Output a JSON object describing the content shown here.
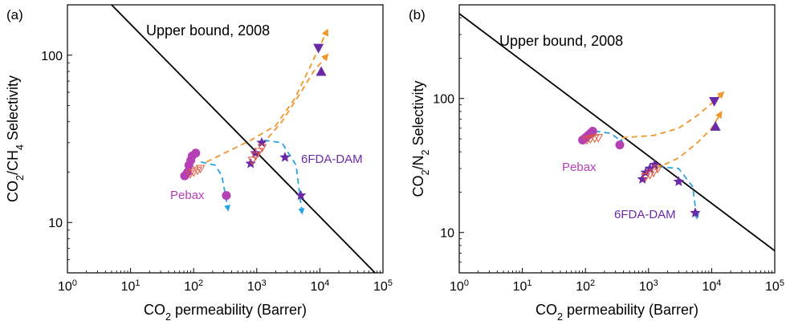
{
  "colors": {
    "pebax": "#b53fb5",
    "dam": "#6a2aa8",
    "trend_blue": "#29a3e0",
    "trend_orange": "#f0962a",
    "hollow": "#e0553a",
    "bound": "#000000"
  },
  "chart_data": [
    {
      "type": "scatter",
      "panel_label": "(a)",
      "xlabel": "CO2 permeability (Barrer)",
      "ylabel": "CO2/CH4 Selectivity",
      "x_scale": "log",
      "y_scale": "log",
      "xlim": [
        1,
        100000
      ],
      "ylim": [
        5,
        200
      ],
      "x_ticks": [
        "10^0",
        "10^1",
        "10^2",
        "10^3",
        "10^4",
        "10^5"
      ],
      "y_ticks": [
        "10",
        "100"
      ],
      "annotations": {
        "bound": "Upper bound, 2008",
        "pebax": "Pebax",
        "dam": "6FDA-DAM"
      },
      "upper_bound": [
        [
          5,
          200
        ],
        [
          75000,
          5
        ]
      ],
      "series": [
        {
          "name": "Pebax",
          "marker": "circle",
          "points": [
            [
              72,
              19
            ],
            [
              80,
              20
            ],
            [
              84,
              22
            ],
            [
              90,
              23.5
            ],
            [
              95,
              25
            ],
            [
              108,
              26
            ],
            [
              330,
              14.5
            ]
          ]
        },
        {
          "marker": "hollow-triangle-down",
          "points": [
            [
              88,
              19.5
            ],
            [
              100,
              20
            ],
            [
              115,
              20.5
            ],
            [
              128,
              21
            ]
          ]
        },
        {
          "name": "6FDA-DAM",
          "marker": "star",
          "points": [
            [
              800,
              22.5
            ],
            [
              950,
              26
            ],
            [
              1200,
              30
            ],
            [
              2800,
              24.5
            ],
            [
              5000,
              14.5
            ]
          ]
        },
        {
          "marker": "hollow-triangle-down",
          "points": [
            [
              850,
              23.5
            ],
            [
              960,
              25
            ],
            [
              1080,
              26.5
            ],
            [
              1220,
              28
            ]
          ]
        },
        {
          "marker": "triangle-down",
          "points": [
            [
              9500,
              110
            ]
          ]
        },
        {
          "marker": "triangle-up",
          "points": [
            [
              10500,
              80
            ]
          ]
        }
      ],
      "trends": [
        {
          "color": "blue",
          "points": [
            [
              130,
              23
            ],
            [
              220,
              22
            ],
            [
              280,
              19
            ],
            [
              350,
              12
            ]
          ]
        },
        {
          "color": "blue",
          "points": [
            [
              1300,
              31
            ],
            [
              2500,
              30
            ],
            [
              4200,
              22
            ],
            [
              5200,
              11.5
            ]
          ]
        },
        {
          "color": "orange",
          "points": [
            [
              160,
              23
            ],
            [
              800,
              31
            ],
            [
              2000,
              38
            ],
            [
              4000,
              55
            ],
            [
              7000,
              85
            ],
            [
              13000,
              140
            ]
          ]
        },
        {
          "color": "orange",
          "points": [
            [
              1200,
              29
            ],
            [
              2500,
              40
            ],
            [
              5000,
              60
            ],
            [
              8000,
              80
            ],
            [
              13000,
              100
            ]
          ]
        }
      ]
    },
    {
      "type": "scatter",
      "panel_label": "(b)",
      "xlabel": "CO2 permeability (Barrer)",
      "ylabel": "CO2/N2 Selectivity",
      "x_scale": "log",
      "y_scale": "log",
      "xlim": [
        1,
        100000
      ],
      "ylim": [
        5,
        500
      ],
      "x_ticks": [
        "10^0",
        "10^1",
        "10^2",
        "10^3",
        "10^4",
        "10^5"
      ],
      "y_ticks": [
        "10",
        "100"
      ],
      "annotations": {
        "bound": "Upper bound, 2008",
        "pebax": "Pebax",
        "dam": "6FDA-DAM"
      },
      "upper_bound": [
        [
          1,
          430
        ],
        [
          100000,
          7.3
        ]
      ],
      "series": [
        {
          "name": "Pebax",
          "marker": "circle",
          "points": [
            [
              90,
              49
            ],
            [
              100,
              51
            ],
            [
              110,
              53
            ],
            [
              120,
              55
            ],
            [
              130,
              57
            ],
            [
              350,
              45
            ]
          ]
        },
        {
          "marker": "hollow-triangle-down",
          "points": [
            [
              105,
              49
            ],
            [
              120,
              50
            ],
            [
              140,
              50.5
            ],
            [
              160,
              51
            ]
          ]
        },
        {
          "name": "6FDA-DAM",
          "marker": "star",
          "points": [
            [
              800,
              25
            ],
            [
              900,
              28
            ],
            [
              1050,
              30
            ],
            [
              1250,
              32
            ],
            [
              3000,
              24
            ],
            [
              5500,
              14
            ]
          ]
        },
        {
          "marker": "hollow-triangle-down",
          "points": [
            [
              900,
              26
            ],
            [
              1050,
              27
            ],
            [
              1200,
              28
            ],
            [
              1400,
              30
            ]
          ]
        },
        {
          "marker": "triangle-down",
          "points": [
            [
              11000,
              95
            ]
          ]
        },
        {
          "marker": "triangle-up",
          "points": [
            [
              11500,
              62
            ]
          ]
        }
      ],
      "trends": [
        {
          "color": "blue",
          "points": [
            [
              140,
              57
            ],
            [
              250,
              55
            ],
            [
              330,
              50
            ],
            [
              380,
              46
            ]
          ]
        },
        {
          "color": "blue",
          "points": [
            [
              1400,
              31
            ],
            [
              3000,
              30
            ],
            [
              5000,
              22
            ],
            [
              5800,
              13
            ]
          ]
        },
        {
          "color": "orange",
          "points": [
            [
              380,
              51
            ],
            [
              1200,
              53
            ],
            [
              3000,
              60
            ],
            [
              6000,
              75
            ],
            [
              10000,
              92
            ],
            [
              15000,
              110
            ]
          ]
        },
        {
          "color": "orange",
          "points": [
            [
              1300,
              30
            ],
            [
              3000,
              36
            ],
            [
              6000,
              47
            ],
            [
              10000,
              60
            ],
            [
              14000,
              78
            ]
          ]
        }
      ]
    }
  ]
}
